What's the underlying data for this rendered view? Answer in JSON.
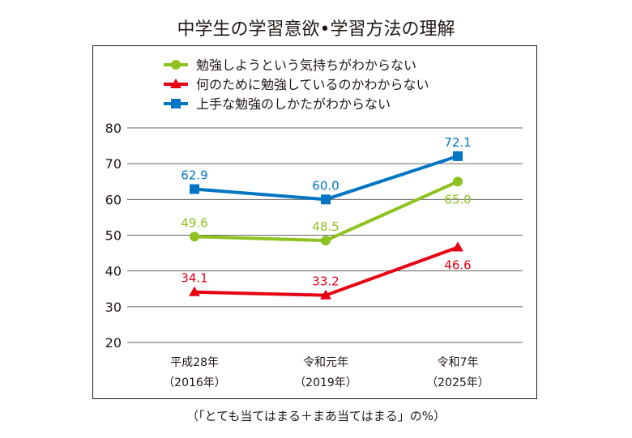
{
  "chart_data": {
    "type": "line",
    "title": "中学生の学習意欲•学習方法の理解",
    "note": "（「とても当てはまる＋まあ当てはまる」の%）",
    "categories": [
      [
        "平成28年",
        "（2016年）"
      ],
      [
        "令和元年",
        "（2019年）"
      ],
      [
        "令和7年",
        "（2025年）"
      ]
    ],
    "ylim": [
      20,
      80
    ],
    "yticks": [
      20,
      30,
      40,
      50,
      60,
      70,
      80
    ],
    "grid": true,
    "legend_position": "top",
    "series": [
      {
        "name": "勉強しようという気持ちがわからない",
        "values": [
          49.6,
          48.5,
          65.0
        ],
        "labels": [
          "49.6",
          "48.5",
          "65.0"
        ],
        "color": "#8dc21f",
        "marker": "circle"
      },
      {
        "name": "何のために勉強しているのかわからない",
        "values": [
          34.1,
          33.2,
          46.6
        ],
        "labels": [
          "34.1",
          "33.2",
          "46.6"
        ],
        "color": "#e60012",
        "marker": "triangle"
      },
      {
        "name": "上手な勉強のしかたがわからない",
        "values": [
          62.9,
          60.0,
          72.1
        ],
        "labels": [
          "62.9",
          "60.0",
          "72.1"
        ],
        "color": "#0075c2",
        "marker": "square"
      }
    ]
  }
}
